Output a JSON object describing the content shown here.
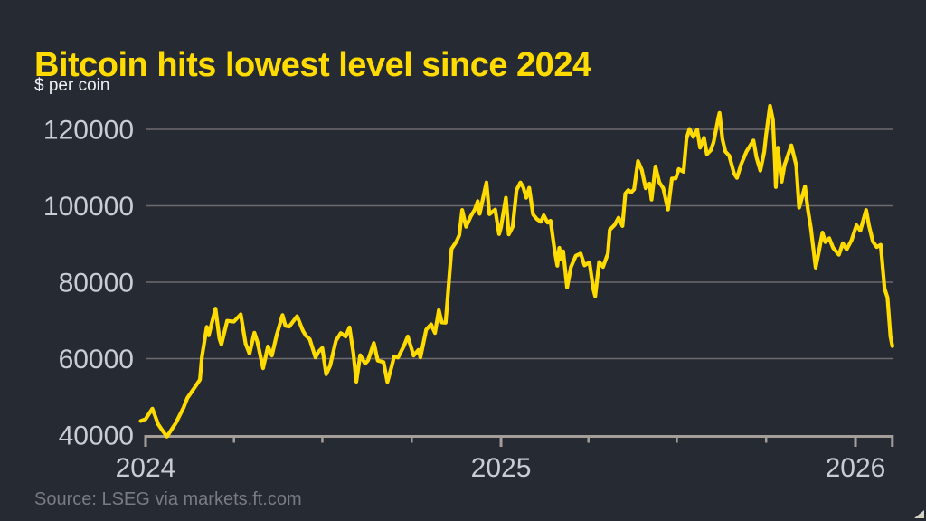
{
  "colors": {
    "background": "#262a33",
    "accent_yellow": "#ffdb00",
    "gridline": "#6e6a70",
    "axis": "#a59e98",
    "tick_label": "#c9ccd2",
    "subtitle_text": "#eef0f3",
    "source_text": "#797b82",
    "corner_icon": "#d8d1c5"
  },
  "icons": {
    "corner_icon_name": "resize-triangle"
  },
  "chart_data": {
    "type": "line",
    "title": "Bitcoin hits lowest level since 2024",
    "subtitle": "$ per coin",
    "source": "Source: LSEG via markets.ft.com",
    "xlabel": "",
    "ylabel": "$ per coin",
    "legend": "none",
    "grid": "horizontal gridlines at y ticks, bottom axis doubles as 40000 line",
    "ylim": [
      40000,
      127000
    ],
    "x_range": [
      "2023-12-27",
      "2026-02-08"
    ],
    "y_ticks": [
      {
        "value": 120000,
        "label": "120000"
      },
      {
        "value": 100000,
        "label": "100000"
      },
      {
        "value": 80000,
        "label": "80000"
      },
      {
        "value": 60000,
        "label": "60000"
      },
      {
        "value": 40000,
        "label": "40000"
      }
    ],
    "x_ticks": [
      {
        "date": "2024-01-01",
        "label": "2024",
        "major": true
      },
      {
        "date": "2024-04-01",
        "label": "",
        "major": false
      },
      {
        "date": "2024-07-01",
        "label": "",
        "major": false
      },
      {
        "date": "2024-10-01",
        "label": "",
        "major": false
      },
      {
        "date": "2025-01-01",
        "label": "2025",
        "major": true
      },
      {
        "date": "2025-04-01",
        "label": "",
        "major": false
      },
      {
        "date": "2025-07-01",
        "label": "",
        "major": false
      },
      {
        "date": "2025-10-01",
        "label": "",
        "major": false
      },
      {
        "date": "2026-01-01",
        "label": "2026",
        "major": true
      },
      {
        "date": "2026-02-08",
        "label": "",
        "major": true
      }
    ],
    "series": [
      {
        "name": "Bitcoin price, $ per coin",
        "color": "#ffdb00",
        "points": [
          [
            "2023-12-27",
            43700
          ],
          [
            "2024-01-01",
            44200
          ],
          [
            "2024-01-08",
            46900
          ],
          [
            "2024-01-14",
            42800
          ],
          [
            "2024-01-18",
            41300
          ],
          [
            "2024-01-23",
            39600
          ],
          [
            "2024-02-01",
            43100
          ],
          [
            "2024-02-09",
            47150
          ],
          [
            "2024-02-13",
            49700
          ],
          [
            "2024-02-20",
            52250
          ],
          [
            "2024-02-26",
            54500
          ],
          [
            "2024-02-28",
            60500
          ],
          [
            "2024-03-04",
            68300
          ],
          [
            "2024-03-06",
            66100
          ],
          [
            "2024-03-13",
            73100
          ],
          [
            "2024-03-17",
            65300
          ],
          [
            "2024-03-19",
            63700
          ],
          [
            "2024-03-25",
            69900
          ],
          [
            "2024-04-01",
            69700
          ],
          [
            "2024-04-08",
            71600
          ],
          [
            "2024-04-13",
            63900
          ],
          [
            "2024-04-17",
            61300
          ],
          [
            "2024-04-22",
            66800
          ],
          [
            "2024-04-25",
            64500
          ],
          [
            "2024-05-01",
            57500
          ],
          [
            "2024-05-06",
            63200
          ],
          [
            "2024-05-10",
            60800
          ],
          [
            "2024-05-15",
            66200
          ],
          [
            "2024-05-21",
            71400
          ],
          [
            "2024-05-24",
            68600
          ],
          [
            "2024-05-28",
            68400
          ],
          [
            "2024-06-05",
            71100
          ],
          [
            "2024-06-11",
            67300
          ],
          [
            "2024-06-14",
            66000
          ],
          [
            "2024-06-18",
            65100
          ],
          [
            "2024-06-24",
            60300
          ],
          [
            "2024-06-27",
            61800
          ],
          [
            "2024-07-01",
            62800
          ],
          [
            "2024-07-05",
            55900
          ],
          [
            "2024-07-09",
            58100
          ],
          [
            "2024-07-15",
            64700
          ],
          [
            "2024-07-20",
            66700
          ],
          [
            "2024-07-25",
            65800
          ],
          [
            "2024-07-29",
            68200
          ],
          [
            "2024-08-02",
            61400
          ],
          [
            "2024-08-05",
            54000
          ],
          [
            "2024-08-09",
            60900
          ],
          [
            "2024-08-14",
            58700
          ],
          [
            "2024-08-17",
            59500
          ],
          [
            "2024-08-23",
            64100
          ],
          [
            "2024-08-27",
            59500
          ],
          [
            "2024-09-02",
            59100
          ],
          [
            "2024-09-06",
            53900
          ],
          [
            "2024-09-10",
            57600
          ],
          [
            "2024-09-13",
            60600
          ],
          [
            "2024-09-17",
            60300
          ],
          [
            "2024-09-23",
            63300
          ],
          [
            "2024-09-27",
            65800
          ],
          [
            "2024-10-03",
            60800
          ],
          [
            "2024-10-08",
            62300
          ],
          [
            "2024-10-10",
            60300
          ],
          [
            "2024-10-16",
            67600
          ],
          [
            "2024-10-21",
            69000
          ],
          [
            "2024-10-25",
            66700
          ],
          [
            "2024-10-29",
            72700
          ],
          [
            "2024-11-01",
            69500
          ],
          [
            "2024-11-05",
            69400
          ],
          [
            "2024-11-07",
            75900
          ],
          [
            "2024-11-11",
            88700
          ],
          [
            "2024-11-16",
            90600
          ],
          [
            "2024-11-19",
            92300
          ],
          [
            "2024-11-22",
            98900
          ],
          [
            "2024-11-26",
            94500
          ],
          [
            "2024-12-01",
            97300
          ],
          [
            "2024-12-05",
            99000
          ],
          [
            "2024-12-08",
            101200
          ],
          [
            "2024-12-10",
            97900
          ],
          [
            "2024-12-17",
            106100
          ],
          [
            "2024-12-20",
            97800
          ],
          [
            "2024-12-26",
            99000
          ],
          [
            "2024-12-30",
            92600
          ],
          [
            "2025-01-01",
            94400
          ],
          [
            "2025-01-06",
            102100
          ],
          [
            "2025-01-09",
            92500
          ],
          [
            "2025-01-13",
            94500
          ],
          [
            "2025-01-17",
            104100
          ],
          [
            "2025-01-21",
            106100
          ],
          [
            "2025-01-24",
            104800
          ],
          [
            "2025-01-27",
            102100
          ],
          [
            "2025-01-30",
            104700
          ],
          [
            "2025-02-03",
            97700
          ],
          [
            "2025-02-07",
            96500
          ],
          [
            "2025-02-11",
            95800
          ],
          [
            "2025-02-14",
            97500
          ],
          [
            "2025-02-18",
            95600
          ],
          [
            "2025-02-21",
            96100
          ],
          [
            "2025-02-25",
            88700
          ],
          [
            "2025-02-28",
            84300
          ],
          [
            "2025-03-02",
            89000
          ],
          [
            "2025-03-04",
            86000
          ],
          [
            "2025-03-06",
            88100
          ],
          [
            "2025-03-10",
            78600
          ],
          [
            "2025-03-14",
            84000
          ],
          [
            "2025-03-19",
            86900
          ],
          [
            "2025-03-24",
            87500
          ],
          [
            "2025-03-28",
            84400
          ],
          [
            "2025-04-02",
            85200
          ],
          [
            "2025-04-06",
            78200
          ],
          [
            "2025-04-08",
            76300
          ],
          [
            "2025-04-12",
            85300
          ],
          [
            "2025-04-16",
            84000
          ],
          [
            "2025-04-21",
            87500
          ],
          [
            "2025-04-23",
            93700
          ],
          [
            "2025-04-28",
            95000
          ],
          [
            "2025-05-02",
            96900
          ],
          [
            "2025-05-06",
            94700
          ],
          [
            "2025-05-09",
            103200
          ],
          [
            "2025-05-12",
            104100
          ],
          [
            "2025-05-15",
            103500
          ],
          [
            "2025-05-18",
            104300
          ],
          [
            "2025-05-22",
            111700
          ],
          [
            "2025-05-26",
            109400
          ],
          [
            "2025-05-30",
            104600
          ],
          [
            "2025-06-03",
            105800
          ],
          [
            "2025-06-05",
            101600
          ],
          [
            "2025-06-09",
            110300
          ],
          [
            "2025-06-13",
            106100
          ],
          [
            "2025-06-17",
            104600
          ],
          [
            "2025-06-22",
            99000
          ],
          [
            "2025-06-26",
            107100
          ],
          [
            "2025-06-30",
            107200
          ],
          [
            "2025-07-03",
            109600
          ],
          [
            "2025-07-08",
            108900
          ],
          [
            "2025-07-11",
            117500
          ],
          [
            "2025-07-14",
            120100
          ],
          [
            "2025-07-18",
            118000
          ],
          [
            "2025-07-22",
            119900
          ],
          [
            "2025-07-25",
            115200
          ],
          [
            "2025-07-29",
            117800
          ],
          [
            "2025-08-01",
            113500
          ],
          [
            "2025-08-05",
            114500
          ],
          [
            "2025-08-08",
            116700
          ],
          [
            "2025-08-13",
            123300
          ],
          [
            "2025-08-14",
            124300
          ],
          [
            "2025-08-17",
            117400
          ],
          [
            "2025-08-20",
            114200
          ],
          [
            "2025-08-24",
            113100
          ],
          [
            "2025-08-29",
            108400
          ],
          [
            "2025-09-01",
            107300
          ],
          [
            "2025-09-05",
            110700
          ],
          [
            "2025-09-11",
            114300
          ],
          [
            "2025-09-18",
            117100
          ],
          [
            "2025-09-21",
            112700
          ],
          [
            "2025-09-25",
            109200
          ],
          [
            "2025-09-29",
            114100
          ],
          [
            "2025-10-01",
            118600
          ],
          [
            "2025-10-05",
            126200
          ],
          [
            "2025-10-08",
            122500
          ],
          [
            "2025-10-10",
            111500
          ],
          [
            "2025-10-11",
            104900
          ],
          [
            "2025-10-13",
            115200
          ],
          [
            "2025-10-17",
            106300
          ],
          [
            "2025-10-20",
            110700
          ],
          [
            "2025-10-27",
            115800
          ],
          [
            "2025-11-01",
            110600
          ],
          [
            "2025-11-04",
            99500
          ],
          [
            "2025-11-10",
            105100
          ],
          [
            "2025-11-13",
            99000
          ],
          [
            "2025-11-16",
            94300
          ],
          [
            "2025-11-21",
            83800
          ],
          [
            "2025-11-24",
            87600
          ],
          [
            "2025-11-28",
            93000
          ],
          [
            "2025-12-01",
            90500
          ],
          [
            "2025-12-05",
            91500
          ],
          [
            "2025-12-09",
            89000
          ],
          [
            "2025-12-15",
            87200
          ],
          [
            "2025-12-19",
            90200
          ],
          [
            "2025-12-23",
            88600
          ],
          [
            "2025-12-28",
            91000
          ],
          [
            "2026-01-02",
            94900
          ],
          [
            "2026-01-06",
            93500
          ],
          [
            "2026-01-09",
            96200
          ],
          [
            "2026-01-12",
            98900
          ],
          [
            "2026-01-15",
            94800
          ],
          [
            "2026-01-19",
            90600
          ],
          [
            "2026-01-23",
            89200
          ],
          [
            "2026-01-27",
            89800
          ],
          [
            "2026-01-31",
            78300
          ],
          [
            "2026-02-03",
            76000
          ],
          [
            "2026-02-06",
            65800
          ],
          [
            "2026-02-08",
            63300
          ]
        ]
      }
    ]
  }
}
